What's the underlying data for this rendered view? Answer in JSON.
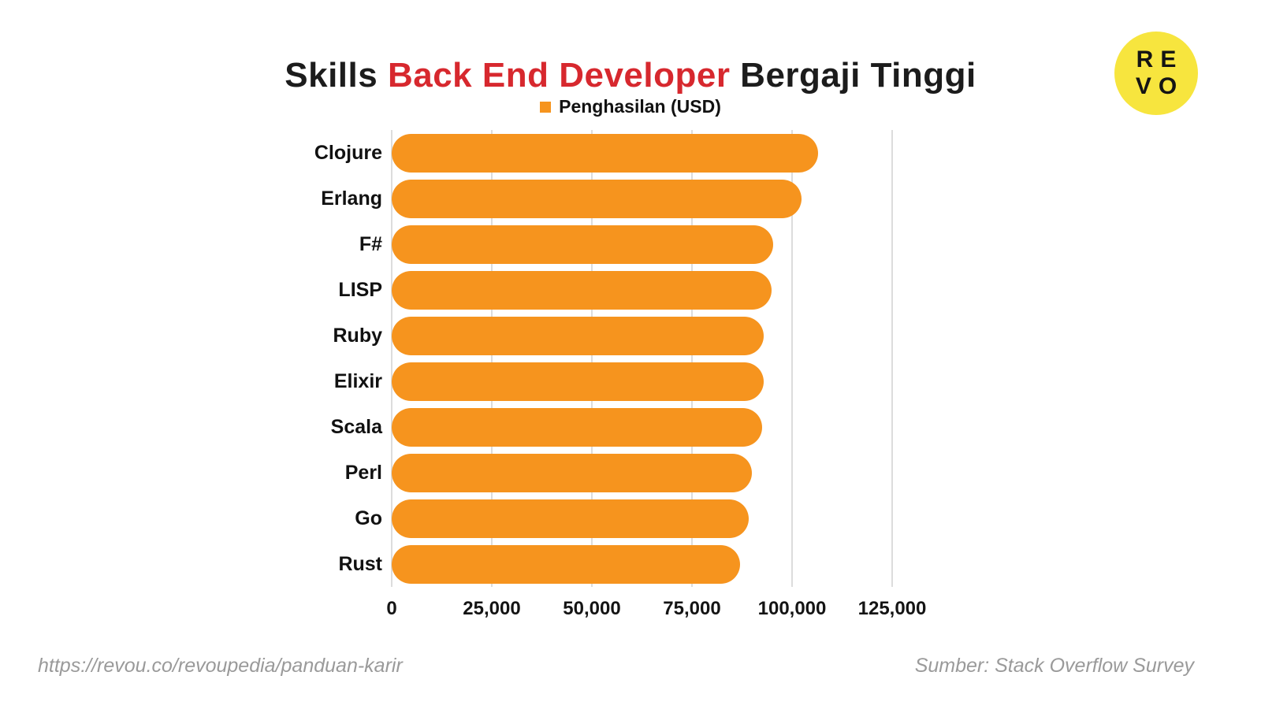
{
  "title": {
    "part1": "Skills ",
    "part2": "Back End Developer",
    "part3": " Bergaji Tinggi",
    "accent_color": "#d7282e"
  },
  "legend": {
    "label": "Penghasilan (USD)",
    "color": "#f6941e"
  },
  "logo": {
    "line1": "RE",
    "line2": "VO",
    "bg_color": "#f7e53e"
  },
  "chart_data": {
    "type": "bar",
    "orientation": "horizontal",
    "title": "Skills Back End Developer Bergaji Tinggi",
    "legend_label": "Penghasilan (USD)",
    "categories": [
      "Clojure",
      "Erlang",
      "F#",
      "LISP",
      "Ruby",
      "Elixir",
      "Scala",
      "Perl",
      "Go",
      "Rust"
    ],
    "values": [
      106500,
      102300,
      95300,
      94800,
      93000,
      93000,
      92500,
      90000,
      89200,
      87000
    ],
    "xlim": [
      0,
      125000
    ],
    "xticks": [
      "0",
      "25,000",
      "50,000",
      "75,000",
      "100,000",
      "125,000"
    ],
    "grid": true,
    "bar_color": "#f6941e"
  },
  "footer": {
    "left": "https://revou.co/revoupedia/panduan-karir",
    "right": "Sumber: Stack Overflow Survey"
  }
}
